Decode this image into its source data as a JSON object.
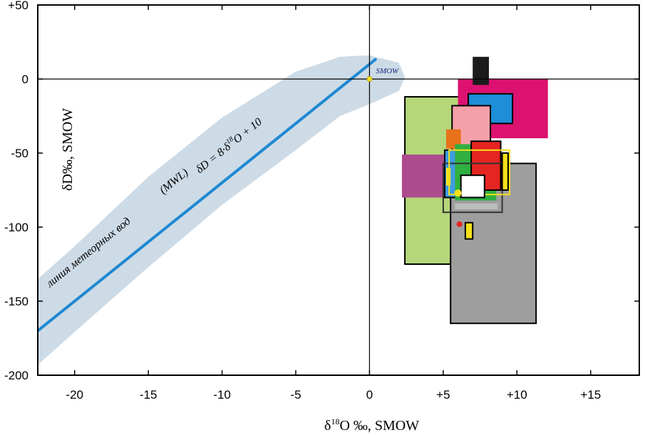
{
  "chart_data": {
    "type": "scatter",
    "title": "",
    "xlabel": {
      "main": "δ",
      "sup": "18",
      "rest": "O ‰, SMOW"
    },
    "ylabel": "δD‰, SMOW",
    "xlim": [
      -22.5,
      18.3
    ],
    "ylim": [
      -200,
      50
    ],
    "x_ticks": [
      {
        "value": -20,
        "label": "-20"
      },
      {
        "value": -15,
        "label": "-15"
      },
      {
        "value": -10,
        "label": "-10"
      },
      {
        "value": -5,
        "label": "-5"
      },
      {
        "value": 0,
        "label": "0"
      },
      {
        "value": 5,
        "label": "+5"
      },
      {
        "value": 10,
        "label": "+10"
      },
      {
        "value": 15,
        "label": "+15"
      }
    ],
    "y_ticks": [
      {
        "value": 50,
        "label": "+50"
      },
      {
        "value": 0,
        "label": "0"
      },
      {
        "value": -50,
        "label": "-50"
      },
      {
        "value": -100,
        "label": "-100"
      },
      {
        "value": -150,
        "label": "-150"
      },
      {
        "value": -200,
        "label": "-200"
      }
    ],
    "grid": false,
    "meteoric_water_line": {
      "slope": 8,
      "intercept": 10,
      "x_range": [
        -22.5,
        0.4
      ],
      "color": "#1e88d2",
      "label_ru": "линия метеорных вод",
      "label_abbr": "(MWL)",
      "equation": {
        "lhs": "δD = 8·δ",
        "sup": "18",
        "rhs": "O + 10"
      }
    },
    "envelope": {
      "points": [
        [
          -22.5,
          -193
        ],
        [
          -19,
          -162
        ],
        [
          -15,
          -127
        ],
        [
          -10,
          -85
        ],
        [
          -5,
          -48
        ],
        [
          -2,
          -25
        ],
        [
          0,
          -17
        ],
        [
          2,
          -8
        ],
        [
          2.4,
          1
        ],
        [
          2,
          11
        ],
        [
          0,
          16
        ],
        [
          -2,
          15
        ],
        [
          -5,
          5
        ],
        [
          -10,
          -26
        ],
        [
          -15,
          -66
        ],
        [
          -20,
          -113
        ],
        [
          -22.5,
          -135
        ]
      ],
      "color": "#cddbe6"
    },
    "smow_point": {
      "x": 0,
      "y": 0,
      "label": "SMOW",
      "color": "#f4e21c"
    },
    "regions": [
      {
        "x0": 2.4,
        "x1": 8.0,
        "y0": -125,
        "y1": -12,
        "fill": "#b5d77a",
        "stroke": "#000000"
      },
      {
        "x0": 5.5,
        "x1": 11.3,
        "y0": -165,
        "y1": -57,
        "fill": "#9e9e9e",
        "stroke": "#000000"
      },
      {
        "x0": 6.0,
        "x1": 12.1,
        "y0": -40,
        "y1": 0,
        "fill": "#dc1170",
        "stroke": "none"
      },
      {
        "x0": 7.0,
        "x1": 8.1,
        "y0": -4,
        "y1": 15,
        "fill": "#1b1b1b",
        "stroke": "none"
      },
      {
        "x0": 6.7,
        "x1": 9.7,
        "y0": -30,
        "y1": -10,
        "fill": "#1e8ed8",
        "stroke": "#000000"
      },
      {
        "x0": 5.6,
        "x1": 8.2,
        "y0": -60,
        "y1": -18,
        "fill": "#f4a0a8",
        "stroke": "#000000"
      },
      {
        "x0": 5.2,
        "x1": 6.2,
        "y0": -47,
        "y1": -34,
        "fill": "#e8711c",
        "stroke": "none"
      },
      {
        "x0": 2.2,
        "x1": 5.3,
        "y0": -80,
        "y1": -51,
        "fill": "#ad4b8f",
        "stroke": "none"
      },
      {
        "x0": 5.1,
        "x1": 6.0,
        "y0": -80,
        "y1": -48,
        "fill": "#3f9be0",
        "stroke": "#000000"
      },
      {
        "x0": 5.8,
        "x1": 8.6,
        "y0": -82,
        "y1": -44,
        "fill": "#2fb040",
        "stroke": "none"
      },
      {
        "x0": 6.9,
        "x1": 8.9,
        "y0": -75,
        "y1": -42,
        "fill": "#e52521",
        "stroke": "#000000"
      },
      {
        "x0": 5.0,
        "x1": 9.0,
        "y0": -90,
        "y1": -57,
        "fill": "none",
        "stroke": "#333333"
      },
      {
        "x0": 5.4,
        "x1": 9.5,
        "y0": -78,
        "y1": -48,
        "fill": "none",
        "stroke": "#f6e01a"
      },
      {
        "x0": 6.2,
        "x1": 7.8,
        "y0": -80,
        "y1": -65,
        "fill": "#ffffff",
        "stroke": "#000000"
      },
      {
        "x0": 5.8,
        "x1": 8.7,
        "y0": -88,
        "y1": -84,
        "fill": "#bdbdbd",
        "stroke": "none"
      },
      {
        "x0": 9.0,
        "x1": 9.4,
        "y0": -75,
        "y1": -50,
        "fill": "#f6e01a",
        "stroke": "#000000"
      },
      {
        "x0": 5.2,
        "x1": 5.5,
        "y0": -72,
        "y1": -60,
        "fill": "#f6e01a",
        "stroke": "none"
      },
      {
        "x0": 6.5,
        "x1": 7.0,
        "y0": -108,
        "y1": -97,
        "fill": "#f6e01a",
        "stroke": "#000000"
      }
    ],
    "points": [
      {
        "x": 6.1,
        "y": -98,
        "color": "#e52521",
        "r": 4
      },
      {
        "x": 6.0,
        "y": -77,
        "color": "#f6e01a",
        "r": 5
      }
    ]
  }
}
